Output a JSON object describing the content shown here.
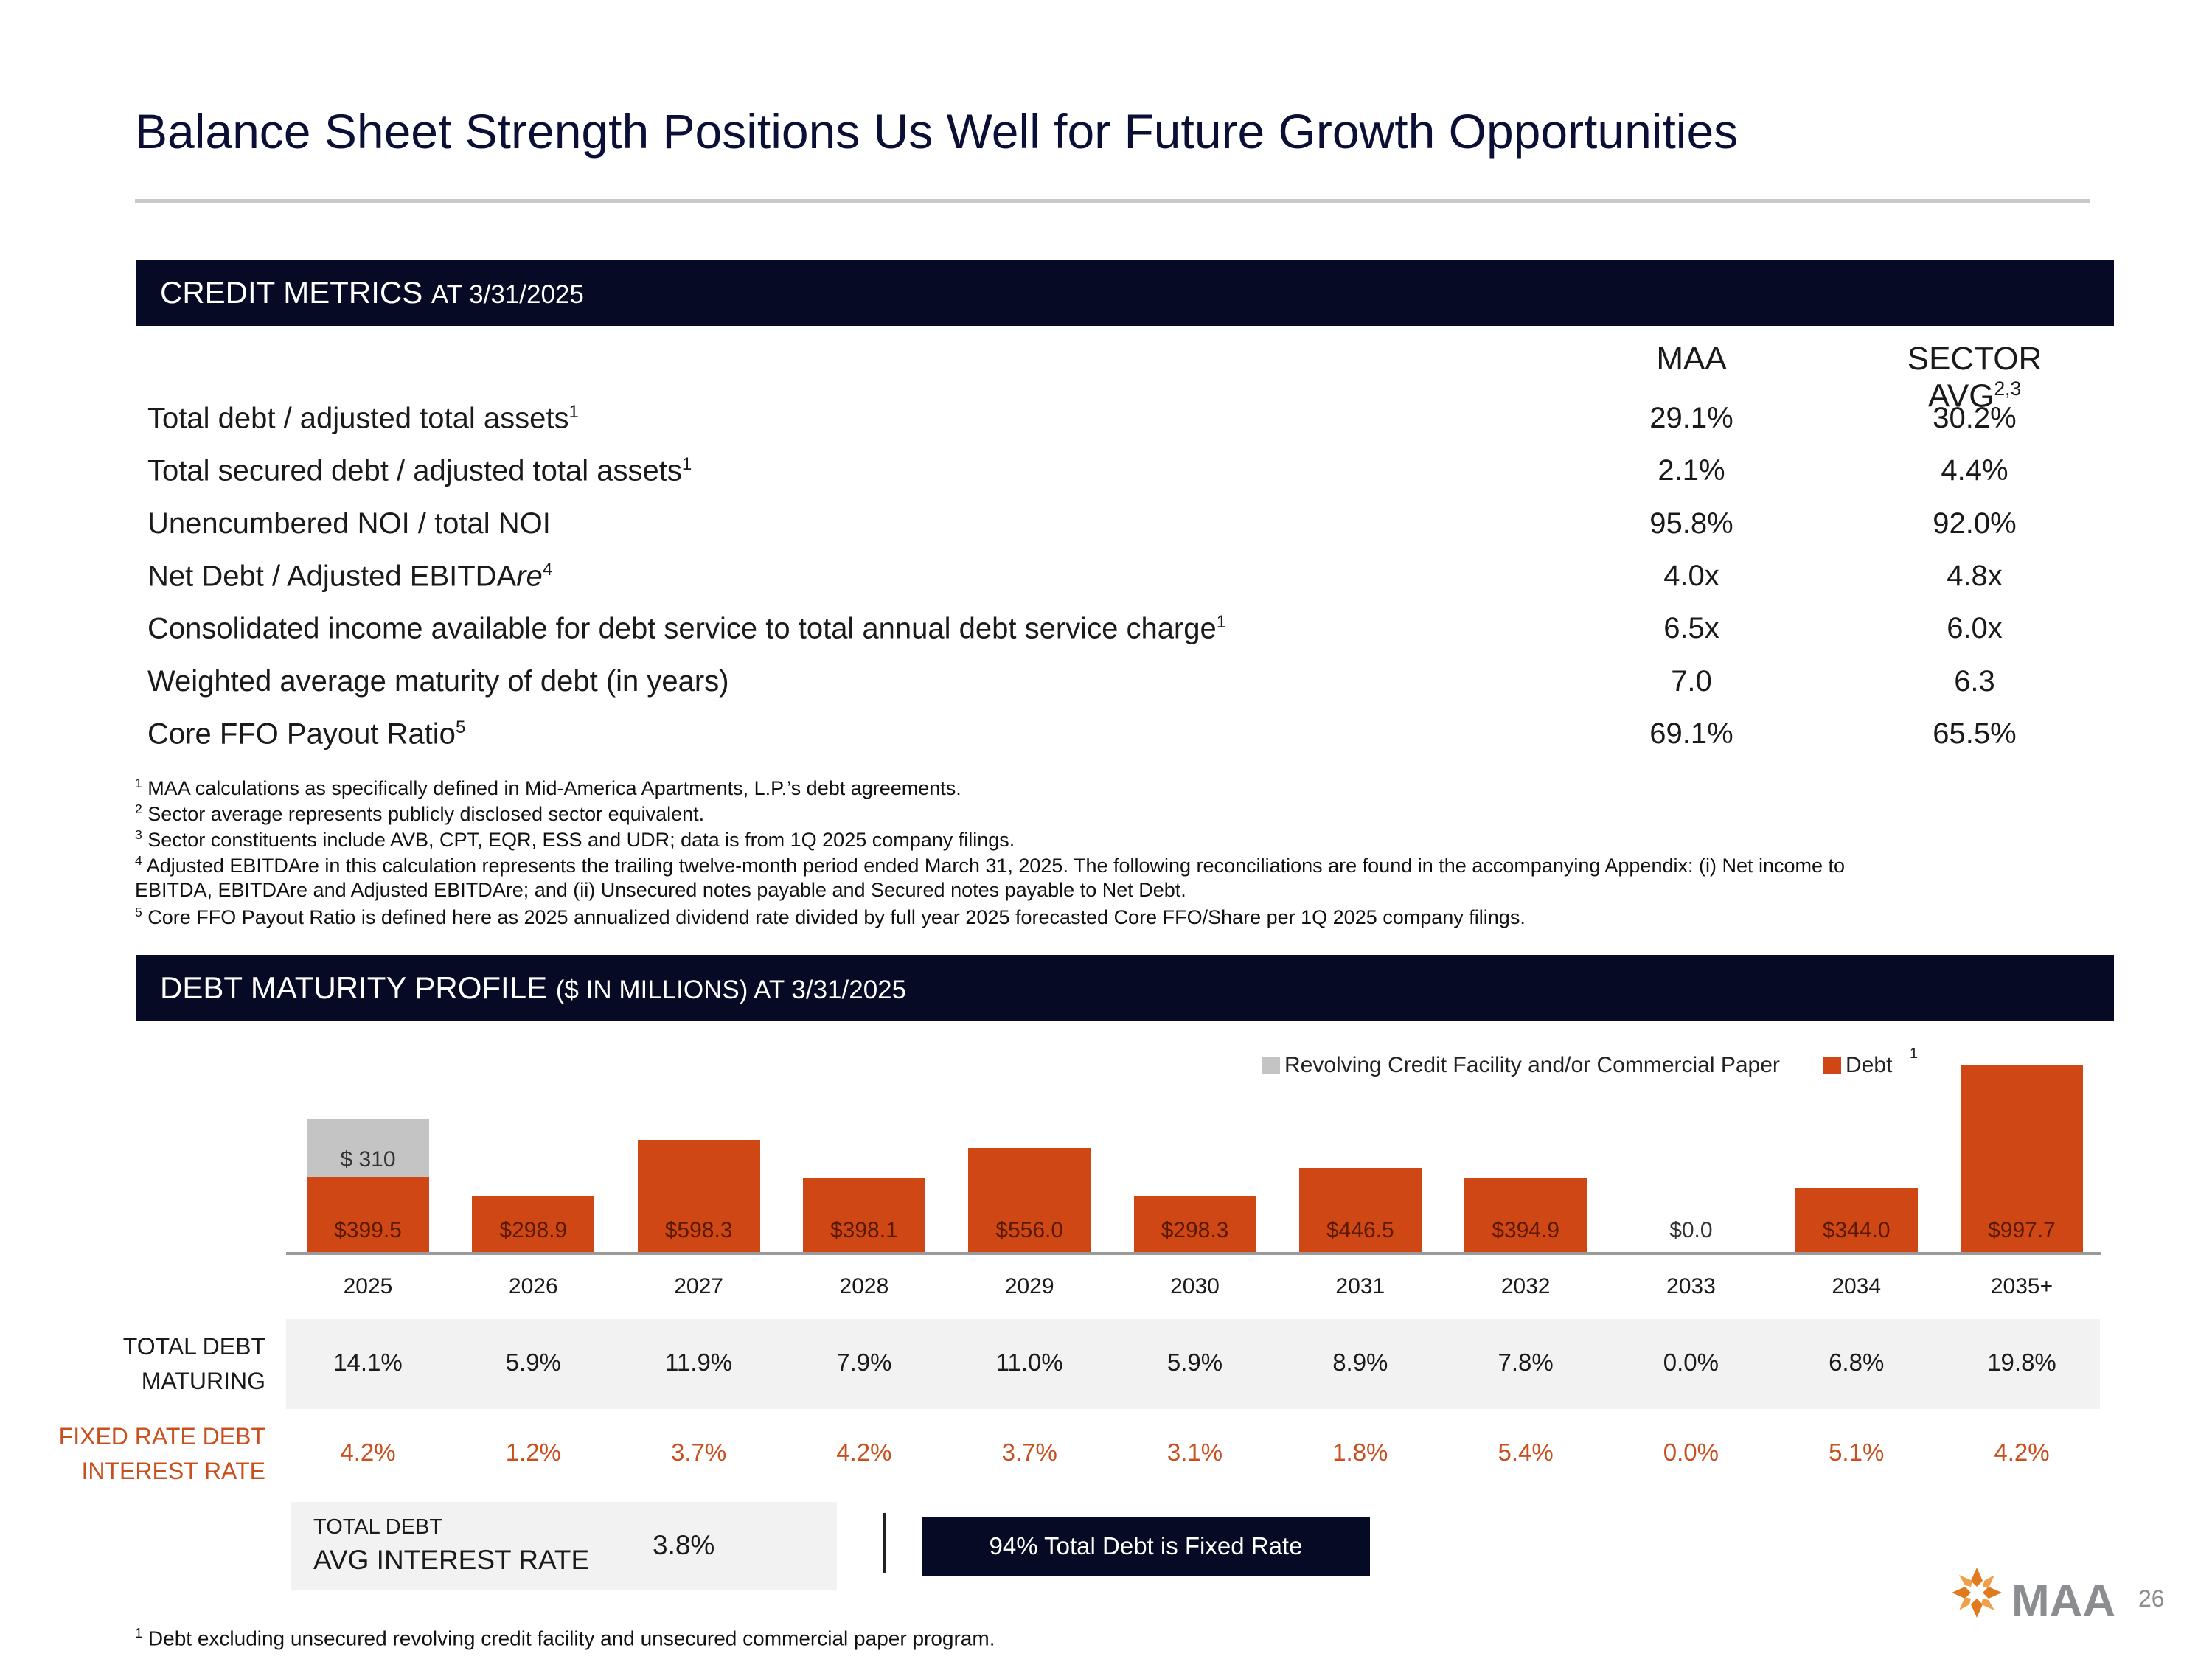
{
  "title": "Balance Sheet Strength Positions Us Well for Future Growth Opportunities",
  "credit_section": {
    "main": "CREDIT METRICS",
    "sub": "AT 3/31/2025"
  },
  "metrics": {
    "col_maa": "MAA",
    "col_sector": "SECTOR AVG",
    "col_sector_sup": "2,3",
    "rows": [
      {
        "label": "Total debt / adjusted total assets",
        "sup": "1",
        "maa": "29.1%",
        "sector": "30.2%"
      },
      {
        "label": "Total secured debt / adjusted total assets",
        "sup": "1",
        "maa": "2.1%",
        "sector": "4.4%"
      },
      {
        "label": "Unencumbered NOI / total NOI",
        "sup": "",
        "maa": "95.8%",
        "sector": "92.0%"
      },
      {
        "label": "Net Debt / Adjusted EBITDA",
        "label_italic": "re",
        "sup": "4",
        "maa": "4.0x",
        "sector": "4.8x"
      },
      {
        "label": "Consolidated income available for debt service to total annual debt service charge",
        "sup": "1",
        "maa": "6.5x",
        "sector": "6.0x"
      },
      {
        "label": "Weighted average maturity of debt (in years)",
        "sup": "",
        "maa": "7.0",
        "sector": "6.3"
      },
      {
        "label": "Core FFO Payout Ratio",
        "sup": "5",
        "maa": "69.1%",
        "sector": "65.5%"
      }
    ]
  },
  "notes": [
    {
      "num": "1",
      "text": " MAA calculations as specifically defined in Mid-America Apartments, L.P.’s debt agreements."
    },
    {
      "num": "2",
      "text": " Sector average represents publicly disclosed sector equivalent."
    },
    {
      "num": "3",
      "text": " Sector constituents include AVB, CPT, EQR, ESS and UDR; data is from 1Q 2025 company filings."
    },
    {
      "num": "4",
      "text": "  Adjusted EBITDAre in this calculation represents the trailing twelve-month period ended March 31, 2025. The following reconciliations are found in the accompanying Appendix: (i) Net income to"
    },
    {
      "num": "",
      "text": "EBITDA, EBITDAre and Adjusted EBITDAre; and (ii) Unsecured notes payable and Secured notes payable to Net Debt."
    },
    {
      "num": "5",
      "text": " Core FFO Payout Ratio is defined here as 2025 annualized dividend rate divided by full year 2025 forecasted Core FFO/Share per 1Q 2025 company filings."
    }
  ],
  "debt_section": {
    "main": "DEBT MATURITY PROFILE",
    "sub": "($ IN MILLIONS) AT 3/31/2025"
  },
  "colors": {
    "debt": "#d04716",
    "revolver": "#c4c4c4",
    "navy": "#070a24",
    "fixed_text": "#c8501e"
  },
  "chart_data": {
    "type": "bar",
    "stacked": true,
    "categories": [
      "2025",
      "2026",
      "2027",
      "2028",
      "2029",
      "2030",
      "2031",
      "2032",
      "2033",
      "2034",
      "2035+"
    ],
    "series": [
      {
        "name": "Debt",
        "legend_sup": "1",
        "values": [
          399.5,
          298.9,
          598.3,
          398.1,
          556.0,
          298.3,
          446.5,
          394.9,
          0.0,
          344.0,
          997.7
        ],
        "labels": [
          "$399.5",
          "$298.9",
          "$598.3",
          "$398.1",
          "$556.0",
          "$298.3",
          "$446.5",
          "$394.9",
          "$0.0",
          "$344.0",
          "$997.7"
        ]
      },
      {
        "name": "Revolving Credit Facility and/or Commercial Paper",
        "values": [
          310,
          0,
          0,
          0,
          0,
          0,
          0,
          0,
          0,
          0,
          0
        ],
        "labels": [
          "$ 310",
          "",
          "",
          "",
          "",
          "",
          "",
          "",
          "",
          "",
          ""
        ]
      }
    ],
    "legend_position": "top-right",
    "grid": false
  },
  "table": {
    "total_debt_maturing": {
      "label_line1": "TOTAL DEBT",
      "label_line2": "MATURING",
      "values": [
        "14.1%",
        "5.9%",
        "11.9%",
        "7.9%",
        "11.0%",
        "5.9%",
        "8.9%",
        "7.8%",
        "0.0%",
        "6.8%",
        "19.8%"
      ]
    },
    "fixed_rate": {
      "label_line1": "FIXED RATE DEBT",
      "label_line2": "INTEREST RATE",
      "values": [
        "4.2%",
        "1.2%",
        "3.7%",
        "4.2%",
        "3.7%",
        "3.1%",
        "1.8%",
        "5.4%",
        "0.0%",
        "5.1%",
        "4.2%"
      ]
    }
  },
  "avg_rate": {
    "label_line1": "TOTAL DEBT",
    "label_line2": "AVG INTEREST RATE",
    "value": "3.8%"
  },
  "fixed_box": "94% Total Debt is Fixed Rate",
  "bottom_note": {
    "num": "1",
    "text": " Debt excluding unsecured revolving credit facility and unsecured commercial paper program."
  },
  "logo": "MAA",
  "page_number": "26"
}
